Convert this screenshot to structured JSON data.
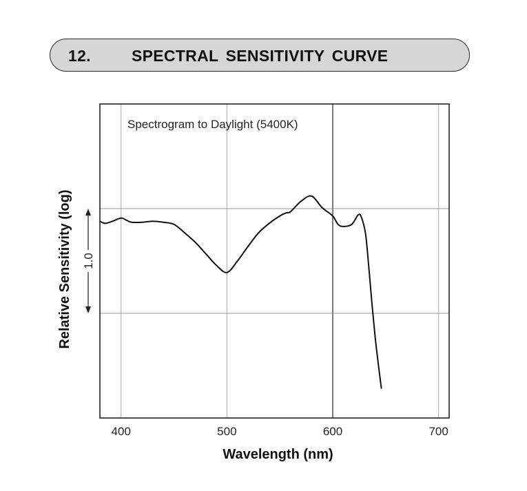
{
  "header": {
    "number": "12.",
    "title": "SPECTRAL  SENSITIVITY  CURVE"
  },
  "chart_data": {
    "type": "line",
    "title": "Spectrogram to Daylight (5400K)",
    "xlabel": "Wavelength (nm)",
    "ylabel": "Relative Sensitivity (log)",
    "scale_bar_label": "1.0",
    "xlim": [
      380,
      710
    ],
    "x_ticks": [
      400,
      500,
      600,
      700
    ],
    "grid": true,
    "series": [
      {
        "x": [
          380,
          385,
          392,
          400,
          405,
          410,
          420,
          430,
          440,
          450,
          460,
          470,
          480,
          490,
          500,
          510,
          520,
          530,
          540,
          550,
          556,
          560,
          570,
          580,
          590,
          600,
          605,
          610,
          618,
          624,
          627,
          631,
          634,
          637,
          640,
          643,
          646
        ],
        "y": [
          0.88,
          0.86,
          0.88,
          0.91,
          0.89,
          0.87,
          0.87,
          0.88,
          0.87,
          0.85,
          0.77,
          0.68,
          0.57,
          0.46,
          0.39,
          0.5,
          0.64,
          0.77,
          0.86,
          0.93,
          0.96,
          0.97,
          1.07,
          1.12,
          1.01,
          0.93,
          0.85,
          0.83,
          0.85,
          0.94,
          0.92,
          0.76,
          0.45,
          0.1,
          -0.22,
          -0.48,
          -0.72
        ]
      }
    ]
  }
}
